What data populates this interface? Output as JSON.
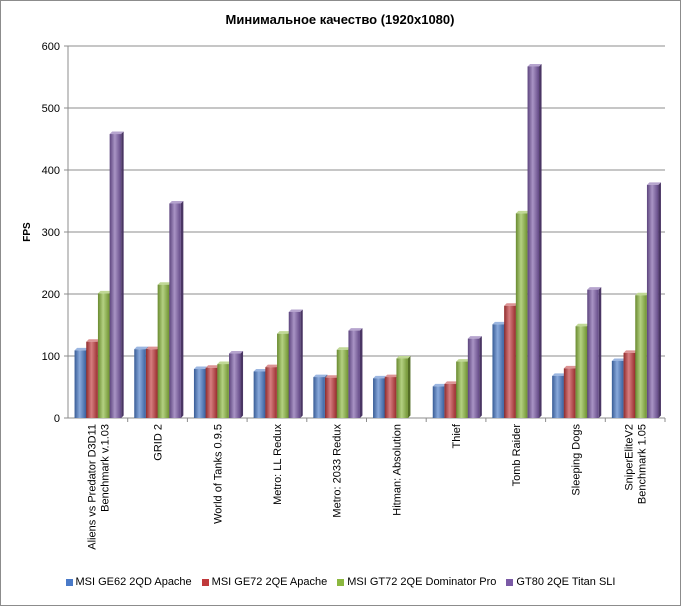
{
  "chart_data": {
    "type": "bar",
    "title": "Минимальное качество (1920x1080)",
    "xlabel": "",
    "ylabel": "FPS",
    "ylim": [
      0,
      600
    ],
    "yticks": [
      0,
      100,
      200,
      300,
      400,
      500,
      600
    ],
    "grid": true,
    "legend_position": "bottom",
    "categories": [
      [
        "Aliens vs Predator D3D11",
        "Benchmark v.1.03"
      ],
      [
        "GRID 2"
      ],
      [
        "World of Tanks 0.9.5"
      ],
      [
        "Metro: LL Redux"
      ],
      [
        "Metro: 2033 Redux"
      ],
      [
        "Hitman: Absolution"
      ],
      [
        "Thief"
      ],
      [
        "Tomb Raider"
      ],
      [
        "Sleeping Dogs"
      ],
      [
        "SniperEliteV2",
        "Benchmark 1.05"
      ]
    ],
    "series": [
      {
        "name": "MSI GE62 2QD Apache",
        "color": "#4a7ac8",
        "values": [
          109,
          111,
          79,
          75,
          66,
          64,
          51,
          151,
          68,
          92
        ]
      },
      {
        "name": "MSI GE72 2QE Apache",
        "color": "#c0393b",
        "values": [
          123,
          111,
          81,
          82,
          65,
          66,
          55,
          181,
          80,
          105
        ]
      },
      {
        "name": "MSI GT72 2QE Dominator Pro",
        "color": "#8cb83f",
        "values": [
          201,
          215,
          87,
          136,
          110,
          96,
          91,
          330,
          148,
          198
        ]
      },
      {
        "name": "GT80 2QE Titan SLI",
        "color": "#7b5aa6",
        "values": [
          458,
          346,
          104,
          171,
          141,
          null,
          128,
          567,
          207,
          376
        ]
      }
    ]
  }
}
